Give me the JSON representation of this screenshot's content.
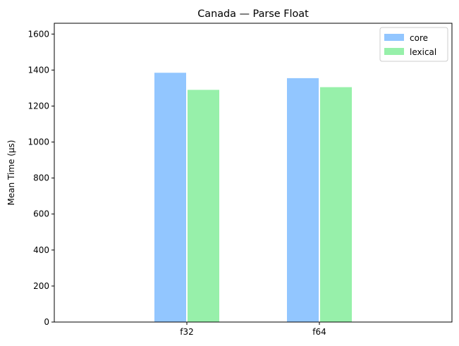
{
  "chart_data": {
    "type": "bar",
    "title": "Canada — Parse Float",
    "xlabel": "",
    "ylabel": "Mean Time (µs)",
    "categories": [
      "f32",
      "f64"
    ],
    "series": [
      {
        "name": "core",
        "values": [
          1385,
          1355
        ],
        "color": "#92c6ff"
      },
      {
        "name": "lexical",
        "values": [
          1290,
          1305
        ],
        "color": "#97f0aa"
      }
    ],
    "ylim": [
      0,
      1660
    ],
    "yticks": [
      0,
      200,
      400,
      600,
      800,
      1000,
      1200,
      1400,
      1600
    ],
    "grid": false,
    "legend_position": "top-right"
  }
}
